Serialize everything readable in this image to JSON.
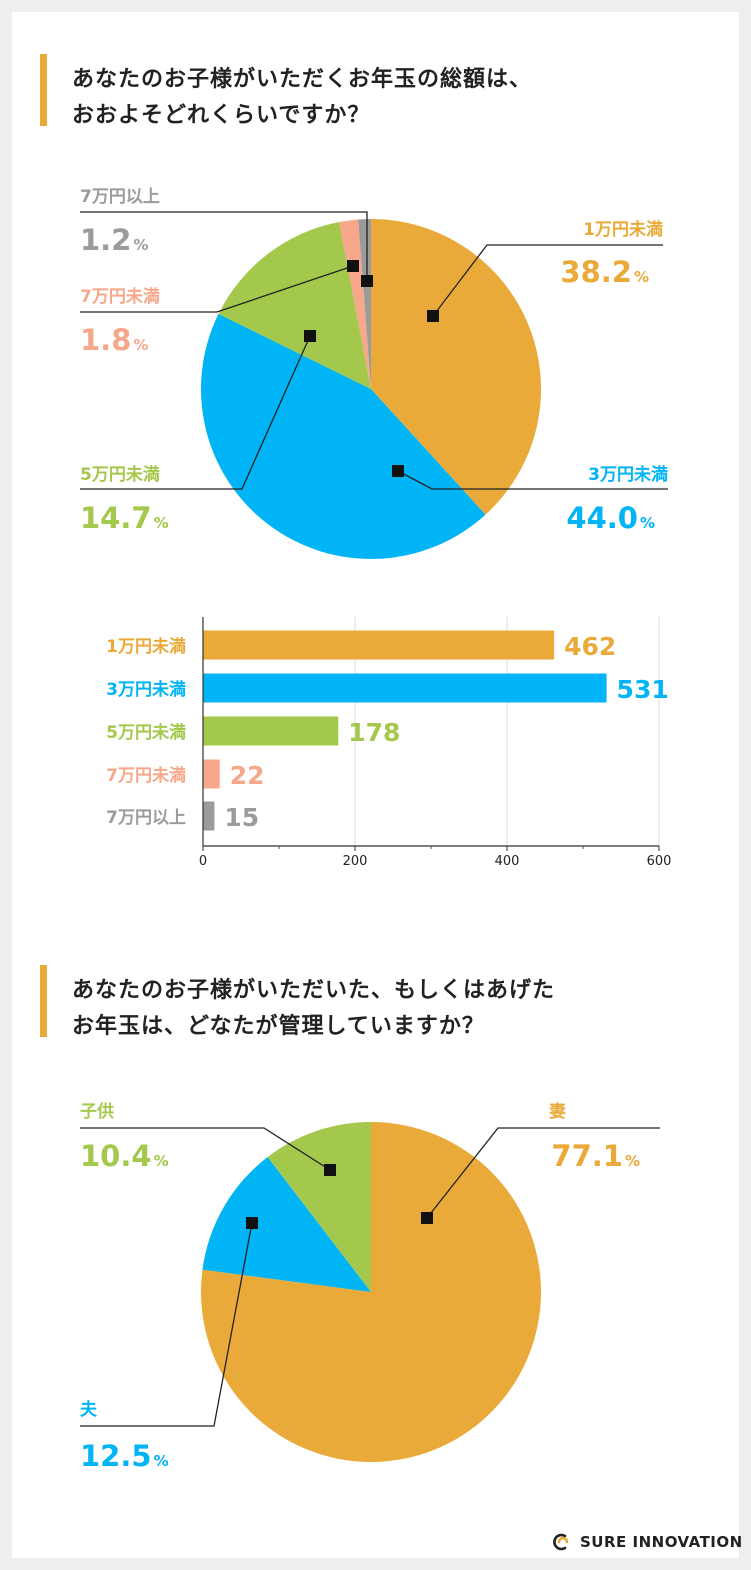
{
  "colors": {
    "orange": "#eaaa3a",
    "blue": "#00b4f5",
    "green": "#a4c84b",
    "salmon": "#f7a88b",
    "gray": "#9b9b9b",
    "label_gray": "#9b9b9b"
  },
  "question1": {
    "line1": "あなたのお子様がいただくお年玉の総額は、",
    "line2": "おおよそどれくらいですか？"
  },
  "question2": {
    "line1": "あなたのお子様がいただいた、もしくはあげた",
    "line2": "お年玉は、どなたが管理していますか？"
  },
  "percent_sign": "%",
  "logo_text": "SURE INNOVATION",
  "chart_data": [
    {
      "type": "pie",
      "title": "あなたのお子様がいただくお年玉の総額は、おおよそどれくらいですか？",
      "slices": [
        {
          "label": "1万円未満",
          "value": 38.2,
          "value_text": "38.2"
        },
        {
          "label": "3万円未満",
          "value": 44.0,
          "value_text": "44.0"
        },
        {
          "label": "5万円未満",
          "value": 14.7,
          "value_text": "14.7"
        },
        {
          "label": "7万円未満",
          "value": 1.8,
          "value_text": "1.8"
        },
        {
          "label": "7万円以上",
          "value": 1.2,
          "value_text": "1.2"
        }
      ]
    },
    {
      "type": "bar",
      "orientation": "horizontal",
      "categories": [
        "1万円未満",
        "3万円未満",
        "5万円未満",
        "7万円未満",
        "7万円以上"
      ],
      "values": [
        462,
        531,
        178,
        22,
        15
      ],
      "xlim": [
        0,
        600
      ],
      "xticks": [
        0,
        200,
        400,
        600
      ],
      "grid": true
    },
    {
      "type": "pie",
      "title": "あなたのお子様がいただいた、もしくはあげたお年玉は、どなたが管理していますか？",
      "slices": [
        {
          "label": "妻",
          "value": 77.1,
          "value_text": "77.1"
        },
        {
          "label": "夫",
          "value": 12.5,
          "value_text": "12.5"
        },
        {
          "label": "子供",
          "value": 10.4,
          "value_text": "10.4"
        }
      ]
    }
  ]
}
